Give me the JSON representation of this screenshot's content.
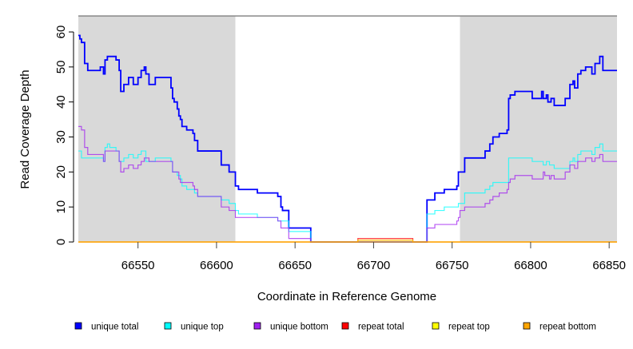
{
  "chart_data": {
    "type": "line",
    "title": "",
    "xlabel": "Coordinate in Reference Genome",
    "ylabel": "Read Coverage Depth",
    "xlim": [
      66512,
      66855
    ],
    "ylim": [
      0,
      64
    ],
    "xticks": [
      66550,
      66600,
      66650,
      66700,
      66750,
      66800,
      66850
    ],
    "yticks": [
      0,
      10,
      20,
      30,
      40,
      50,
      60
    ],
    "shaded_ranges": [
      [
        66512,
        66612
      ],
      [
        66755,
        66855
      ]
    ],
    "legend_position": "bottom",
    "step": true,
    "series": [
      {
        "name": "unique total",
        "color": "#0000FF",
        "points": [
          [
            66512,
            59
          ],
          [
            66513,
            58
          ],
          [
            66514,
            57
          ],
          [
            66516,
            51
          ],
          [
            66518,
            49
          ],
          [
            66526,
            50
          ],
          [
            66528,
            48
          ],
          [
            66529,
            52
          ],
          [
            66530.5,
            53
          ],
          [
            66536,
            52
          ],
          [
            66538,
            49
          ],
          [
            66539,
            43
          ],
          [
            66541,
            45
          ],
          [
            66544,
            47
          ],
          [
            66547,
            45
          ],
          [
            66550,
            47
          ],
          [
            66552,
            49
          ],
          [
            66554,
            50
          ],
          [
            66555,
            48
          ],
          [
            66557,
            45
          ],
          [
            66561,
            47
          ],
          [
            66571,
            44
          ],
          [
            66572,
            41
          ],
          [
            66573,
            40
          ],
          [
            66575,
            38
          ],
          [
            66576,
            36
          ],
          [
            66577,
            35
          ],
          [
            66578,
            33
          ],
          [
            66581,
            32
          ],
          [
            66585,
            31
          ],
          [
            66586,
            29
          ],
          [
            66588,
            26
          ],
          [
            66603,
            22
          ],
          [
            66608,
            20
          ],
          [
            66612,
            16
          ],
          [
            66614,
            15
          ],
          [
            66626,
            14
          ],
          [
            66639,
            13
          ],
          [
            66641,
            10
          ],
          [
            66642,
            9
          ],
          [
            66646,
            4
          ],
          [
            66660,
            0
          ],
          [
            66734,
            12
          ],
          [
            66739,
            14
          ],
          [
            66745,
            15
          ],
          [
            66753,
            16
          ],
          [
            66754,
            20
          ],
          [
            66758,
            24
          ],
          [
            66771,
            26
          ],
          [
            66774,
            28
          ],
          [
            66776,
            30
          ],
          [
            66780,
            31
          ],
          [
            66785,
            32
          ],
          [
            66786,
            41
          ],
          [
            66787,
            42
          ],
          [
            66790,
            43
          ],
          [
            66801,
            41
          ],
          [
            66807,
            43
          ],
          [
            66808,
            41
          ],
          [
            66810,
            42
          ],
          [
            66811,
            40
          ],
          [
            66813,
            41
          ],
          [
            66815,
            39
          ],
          [
            66822,
            41
          ],
          [
            66825,
            45
          ],
          [
            66827,
            46
          ],
          [
            66828,
            44
          ],
          [
            66830,
            48
          ],
          [
            66832,
            49
          ],
          [
            66835,
            50
          ],
          [
            66839,
            48
          ],
          [
            66841,
            51
          ],
          [
            66844,
            53
          ],
          [
            66846,
            49
          ]
        ]
      },
      {
        "name": "unique top",
        "color": "#00FFFF",
        "points": [
          [
            66512,
            26
          ],
          [
            66514,
            24
          ],
          [
            66528,
            23
          ],
          [
            66529,
            27
          ],
          [
            66530.5,
            28
          ],
          [
            66532,
            27
          ],
          [
            66536,
            26
          ],
          [
            66538,
            23
          ],
          [
            66541,
            24
          ],
          [
            66544,
            25
          ],
          [
            66547,
            24
          ],
          [
            66550,
            25
          ],
          [
            66552,
            26
          ],
          [
            66555,
            23
          ],
          [
            66561,
            24
          ],
          [
            66571,
            23
          ],
          [
            66572,
            20
          ],
          [
            66575,
            19
          ],
          [
            66577,
            18
          ],
          [
            66578,
            16
          ],
          [
            66581,
            15
          ],
          [
            66586,
            14
          ],
          [
            66588,
            13
          ],
          [
            66603,
            12
          ],
          [
            66608,
            11
          ],
          [
            66612,
            9
          ],
          [
            66614,
            8
          ],
          [
            66626,
            7
          ],
          [
            66639,
            6
          ],
          [
            66646,
            3
          ],
          [
            66660,
            0
          ],
          [
            66734,
            8
          ],
          [
            66739,
            9
          ],
          [
            66745,
            10
          ],
          [
            66754,
            11
          ],
          [
            66758,
            14
          ],
          [
            66771,
            15
          ],
          [
            66774,
            16
          ],
          [
            66776,
            17
          ],
          [
            66786,
            24
          ],
          [
            66801,
            23
          ],
          [
            66808,
            22
          ],
          [
            66810,
            23
          ],
          [
            66812,
            22
          ],
          [
            66815,
            21
          ],
          [
            66825,
            23
          ],
          [
            66827,
            24
          ],
          [
            66828,
            23
          ],
          [
            66830,
            25
          ],
          [
            66832,
            26
          ],
          [
            66839,
            25
          ],
          [
            66841,
            27
          ],
          [
            66844,
            28
          ],
          [
            66846,
            26
          ]
        ]
      },
      {
        "name": "unique bottom",
        "color": "#A020F0",
        "points": [
          [
            66512,
            33
          ],
          [
            66514,
            32
          ],
          [
            66516,
            27
          ],
          [
            66518,
            25
          ],
          [
            66528,
            23
          ],
          [
            66529,
            26
          ],
          [
            66538,
            23
          ],
          [
            66539,
            20
          ],
          [
            66541,
            21
          ],
          [
            66544,
            22
          ],
          [
            66547,
            21
          ],
          [
            66550,
            22
          ],
          [
            66552,
            23
          ],
          [
            66554,
            24
          ],
          [
            66557,
            23
          ],
          [
            66572,
            20
          ],
          [
            66576,
            18
          ],
          [
            66577,
            17
          ],
          [
            66585,
            16
          ],
          [
            66586,
            15
          ],
          [
            66588,
            13
          ],
          [
            66603,
            10
          ],
          [
            66608,
            9
          ],
          [
            66612,
            7
          ],
          [
            66639,
            6
          ],
          [
            66641,
            4
          ],
          [
            66646,
            1
          ],
          [
            66660,
            0
          ],
          [
            66734,
            4
          ],
          [
            66739,
            5
          ],
          [
            66753,
            6
          ],
          [
            66754,
            7
          ],
          [
            66755,
            9
          ],
          [
            66758,
            10
          ],
          [
            66771,
            11
          ],
          [
            66774,
            12
          ],
          [
            66776,
            13
          ],
          [
            66780,
            14
          ],
          [
            66785,
            15
          ],
          [
            66786,
            17
          ],
          [
            66787,
            18
          ],
          [
            66790,
            19
          ],
          [
            66801,
            18
          ],
          [
            66808,
            20
          ],
          [
            66809,
            19
          ],
          [
            66812,
            18
          ],
          [
            66813,
            19
          ],
          [
            66815,
            18
          ],
          [
            66822,
            20
          ],
          [
            66825,
            22
          ],
          [
            66828,
            21
          ],
          [
            66830,
            23
          ],
          [
            66835,
            24
          ],
          [
            66839,
            23
          ],
          [
            66841,
            24
          ],
          [
            66844,
            25
          ],
          [
            66846,
            23
          ]
        ]
      },
      {
        "name": "repeat total",
        "color": "#FF0000",
        "points": [
          [
            66512,
            0
          ],
          [
            66690,
            1
          ],
          [
            66725,
            0
          ]
        ]
      },
      {
        "name": "repeat top",
        "color": "#FFFF00",
        "points": [
          [
            66512,
            0
          ],
          [
            66690,
            0.5
          ],
          [
            66725,
            0
          ]
        ]
      },
      {
        "name": "repeat bottom",
        "color": "#FFA500",
        "points": [
          [
            66512,
            0
          ],
          [
            66690,
            0.5
          ],
          [
            66725,
            0
          ]
        ]
      }
    ]
  }
}
